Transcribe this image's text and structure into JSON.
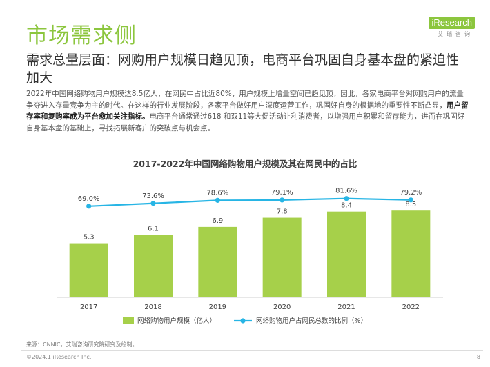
{
  "header": {
    "title": "市场需求侧",
    "logo_text": "iResearch",
    "logo_sub": "艾瑞咨询"
  },
  "subtitle": "需求总量层面：网购用户规模日趋见顶，电商平台巩固自身基本盘的紧迫性加大",
  "body": {
    "part1": "2022年中国网络购物用户规模达8.5亿人，在网民中占比近80%，用户规模上增量空间已趋见顶，因此，各家电商平台对网购用户的流量争夺进入存量竞争为主的时代。在这样的行业发展阶段，各家平台做好用户深度运营工作，巩固好自身的根据地的重要性不断凸显，",
    "bold": "用户留存率和复购率成为平台愈加关注指标。",
    "part2": "电商平台通常通过618 和双11等大促活动让利消费者，以增强用户积累和留存能力，进而在巩固好自身基本盘的基础上，寻找拓展新客户的突破点与机会点。"
  },
  "chart_data": {
    "type": "bar",
    "title": "2017-2022年中国网络购物用户规模及其在网民中的占比",
    "categories": [
      "2017",
      "2018",
      "2019",
      "2020",
      "2021",
      "2022"
    ],
    "series": [
      {
        "name": "网络购物用户规模（亿人）",
        "type": "bar",
        "values": [
          5.3,
          6.1,
          6.9,
          7.8,
          8.4,
          8.5
        ],
        "labels": [
          "5.3",
          "6.1",
          "6.9",
          "7.8",
          "8.4",
          "8.5"
        ],
        "color": "#a6d04a"
      },
      {
        "name": "网络购物用户占网民总数的比例（%）",
        "type": "line",
        "values": [
          69.0,
          73.6,
          78.6,
          79.1,
          81.6,
          79.2
        ],
        "labels": [
          "69.0%",
          "73.6%",
          "78.6%",
          "79.1%",
          "81.6%",
          "79.2%"
        ],
        "color": "#27b5e5"
      }
    ],
    "legend_position": "bottom",
    "grid": false
  },
  "footer": {
    "source": "来源：CNNIC，艾瑞咨询研究院研究及绘制。",
    "copyright": "©2024.1 iResearch Inc.",
    "page": "8"
  }
}
